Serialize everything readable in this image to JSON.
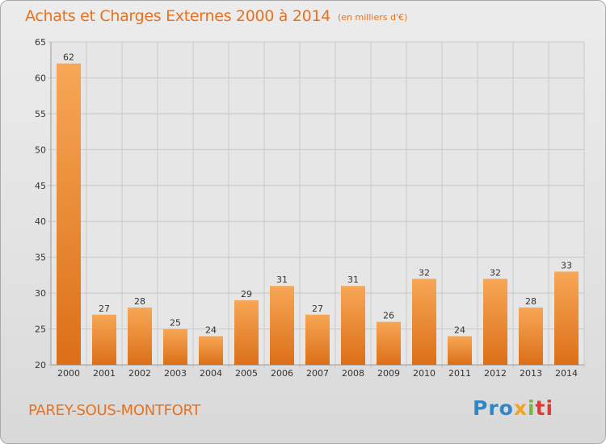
{
  "header": {
    "title": "Achats et Charges Externes 2000 à 2014",
    "unit": "(en milliers d'€)"
  },
  "footer": {
    "place": "PAREY-SOUS-MONTFORT",
    "logo_parts": [
      "Pro",
      "x",
      "i",
      "ti"
    ]
  },
  "colors": {
    "bar_top": "#f7a756",
    "bar_bottom": "#dc6f18",
    "title": "#e8711f",
    "grid": "#c9c9c9"
  },
  "chart_data": {
    "type": "bar",
    "title": "Achats et Charges Externes 2000 à 2014",
    "xlabel": "",
    "ylabel": "",
    "categories": [
      "2000",
      "2001",
      "2002",
      "2003",
      "2004",
      "2005",
      "2006",
      "2007",
      "2008",
      "2009",
      "2010",
      "2011",
      "2012",
      "2013",
      "2014"
    ],
    "values": [
      62,
      27,
      28,
      25,
      24,
      29,
      31,
      27,
      31,
      26,
      32,
      24,
      32,
      28,
      33
    ],
    "ylim": [
      20,
      65
    ],
    "yticks": [
      20,
      25,
      30,
      35,
      40,
      45,
      50,
      55,
      60,
      65
    ],
    "grid": true,
    "legend": "none"
  }
}
